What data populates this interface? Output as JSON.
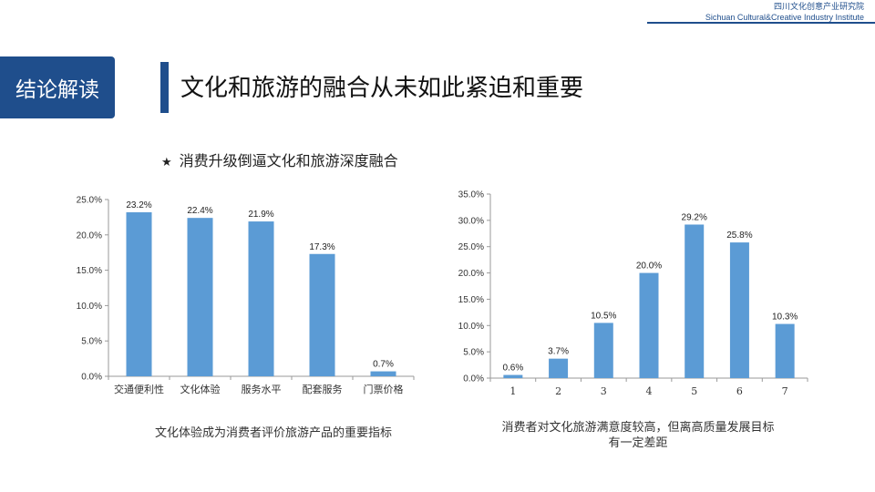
{
  "org": {
    "name_cn": "四川文化创意产业研究院",
    "name_en": "Sichuan Cultural&Creative Industry Institute"
  },
  "badge": {
    "label": "结论解读"
  },
  "page_title": "文化和旅游的融合从未如此紧迫和重要",
  "subhead": {
    "star": "★",
    "text": "消费升级倒逼文化和旅游深度融合"
  },
  "colors": {
    "accent": "#1f4e8c",
    "bar": "#5b9bd5",
    "axis": "#9a9a9a"
  },
  "chart_data": [
    {
      "type": "bar",
      "title": "",
      "xlabel": "",
      "ylabel": "",
      "categories": [
        "交通便利性",
        "文化体验",
        "服务水平",
        "配套服务",
        "门票价格"
      ],
      "values": [
        23.2,
        22.4,
        21.9,
        17.3,
        0.7
      ],
      "data_labels": [
        "23.2%",
        "22.4%",
        "21.9%",
        "17.3%",
        "0.7%"
      ],
      "ylim": [
        0,
        25
      ],
      "yticks": [
        "0.0%",
        "5.0%",
        "10.0%",
        "15.0%",
        "20.0%",
        "25.0%"
      ],
      "grid": false,
      "legend": "none",
      "caption": "文化体验成为消费者评价旅游产品的重要指标"
    },
    {
      "type": "bar",
      "title": "",
      "xlabel": "",
      "ylabel": "",
      "categories": [
        "1",
        "2",
        "3",
        "4",
        "5",
        "6",
        "7"
      ],
      "values": [
        0.6,
        3.7,
        10.5,
        20.0,
        29.2,
        25.8,
        10.3
      ],
      "data_labels": [
        "0.6%",
        "3.7%",
        "10.5%",
        "20.0%",
        "29.2%",
        "25.8%",
        "10.3%"
      ],
      "ylim": [
        0,
        35
      ],
      "yticks": [
        "0.0%",
        "5.0%",
        "10.0%",
        "15.0%",
        "20.0%",
        "25.0%",
        "30.0%",
        "35.0%"
      ],
      "grid": false,
      "legend": "none",
      "caption_lines": [
        "消费者对文化旅游满意度较高，但离高质量发展目标",
        "有一定差距"
      ]
    }
  ]
}
